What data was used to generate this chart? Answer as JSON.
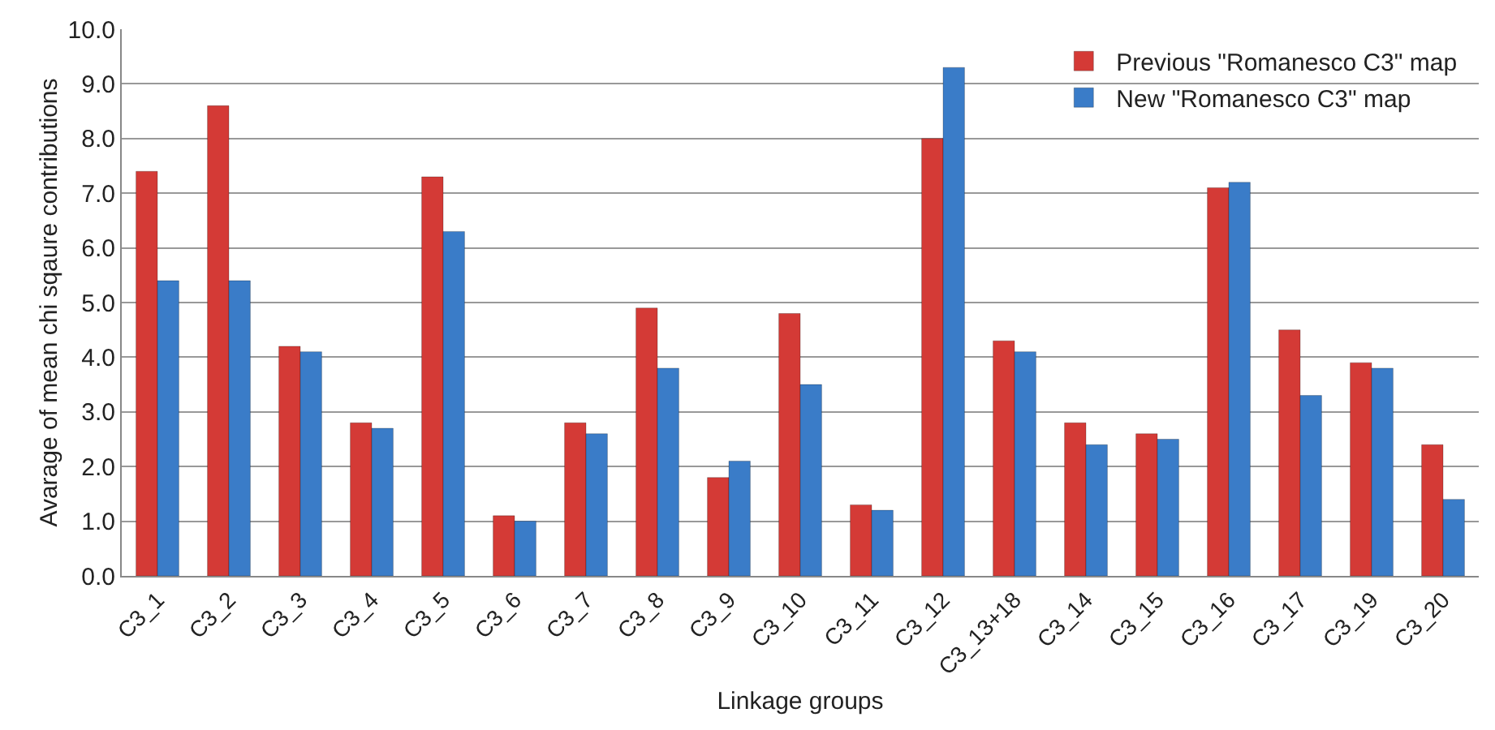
{
  "chart_data": {
    "type": "bar",
    "xlabel": "Linkage groups",
    "ylabel": "Avarage of mean chi sqaure contributions",
    "categories": [
      "C3_1",
      "C3_2",
      "C3_3",
      "C3_4",
      "C3_5",
      "C3_6",
      "C3_7",
      "C3_8",
      "C3_9",
      "C3_10",
      "C3_11",
      "C3_12",
      "C3_13+18",
      "C3_14",
      "C3_15",
      "C3_16",
      "C3_17",
      "C3_19",
      "C3_20"
    ],
    "series": [
      {
        "name": "Previous \"Romanesco C3\" map",
        "color": "#d43a36",
        "values": [
          7.4,
          8.6,
          4.2,
          2.8,
          7.3,
          1.1,
          2.8,
          4.9,
          1.8,
          4.8,
          1.3,
          8.0,
          4.3,
          2.8,
          2.6,
          7.1,
          4.5,
          3.9,
          2.4
        ]
      },
      {
        "name": "New \"Romanesco C3\" map",
        "color": "#3a7cc8",
        "values": [
          5.4,
          5.4,
          4.1,
          2.7,
          6.3,
          1.0,
          2.6,
          3.8,
          2.1,
          3.5,
          1.2,
          9.3,
          4.1,
          2.4,
          2.5,
          7.2,
          3.3,
          3.8,
          1.4
        ]
      }
    ],
    "ylim": [
      0,
      10
    ],
    "yticks": [
      {
        "value": 0,
        "label": "0.0"
      },
      {
        "value": 1,
        "label": "1.0"
      },
      {
        "value": 2,
        "label": "2.0"
      },
      {
        "value": 3,
        "label": "3.0"
      },
      {
        "value": 4,
        "label": "4.0"
      },
      {
        "value": 5,
        "label": "5.0"
      },
      {
        "value": 6,
        "label": "6.0"
      },
      {
        "value": 7,
        "label": "7.0"
      },
      {
        "value": 8,
        "label": "8.0"
      },
      {
        "value": 9,
        "label": "9.0"
      },
      {
        "value": 10,
        "label": "10.0"
      }
    ],
    "grid": "y",
    "legend": "top right"
  }
}
